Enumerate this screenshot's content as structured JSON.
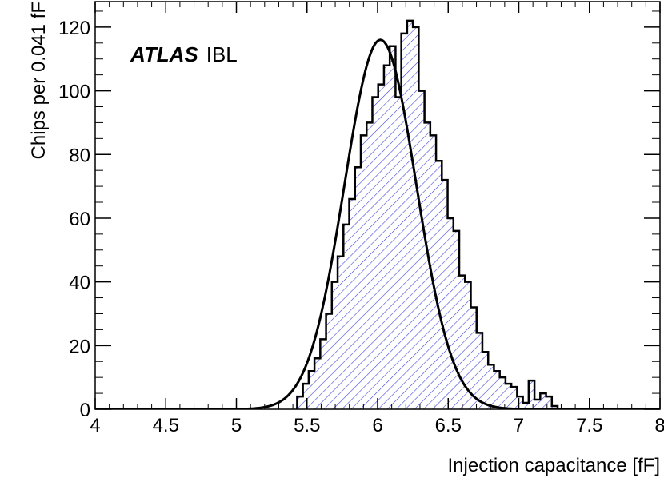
{
  "chart_data": {
    "type": "histogram",
    "xlabel": "Injection capacitance [fF]",
    "ylabel": "Chips per 0.041 fF",
    "xlim": [
      4,
      8
    ],
    "ylim": [
      0,
      128
    ],
    "x_ticks": [
      4,
      4.5,
      5,
      5.5,
      6,
      6.5,
      7,
      7.5,
      8
    ],
    "x_tick_labels": [
      "4",
      "4.5",
      "5",
      "5.5",
      "6",
      "6.5",
      "7",
      "7.5",
      "8"
    ],
    "y_ticks": [
      0,
      20,
      40,
      60,
      80,
      100,
      120
    ],
    "y_tick_labels": [
      "0",
      "20",
      "40",
      "60",
      "80",
      "100",
      "120"
    ],
    "label_bold": "ATLAS",
    "label_plain": "IBL",
    "bin_width": 0.041,
    "bin_start": 5.43,
    "bin_counts": [
      4,
      8,
      12,
      16,
      22,
      30,
      40,
      48,
      58,
      66,
      76,
      86,
      90,
      98,
      102,
      108,
      114,
      98,
      118,
      122,
      120,
      100,
      90,
      86,
      78,
      72,
      60,
      56,
      42,
      40,
      32,
      24,
      18,
      14,
      12,
      10,
      8,
      7,
      4,
      2,
      9,
      3,
      5,
      4,
      1
    ],
    "fit": {
      "type": "gaussian",
      "amplitude": 116,
      "mean": 6.02,
      "sigma": 0.255
    },
    "hist_fill_color": "#3d46d9",
    "line_color": "#000000"
  }
}
